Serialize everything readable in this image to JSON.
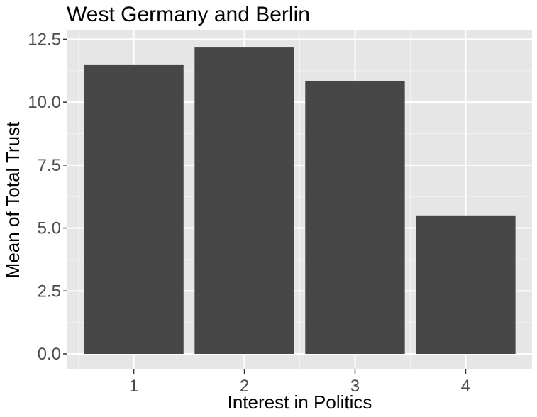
{
  "chart_data": {
    "type": "bar",
    "title": "West Germany and Berlin",
    "xlabel": "Interest in Politics",
    "ylabel": "Mean of Total Trust",
    "categories": [
      "1",
      "2",
      "3",
      "4"
    ],
    "values": [
      11.5,
      12.2,
      10.85,
      5.5
    ],
    "ylim": [
      -0.62,
      12.85
    ],
    "yticks": [
      0.0,
      2.5,
      5.0,
      7.5,
      10.0,
      12.5
    ],
    "ytick_labels": [
      "0.0",
      "2.5",
      "5.0",
      "7.5",
      "10.0",
      "12.5"
    ],
    "grid": true,
    "legend": "none",
    "colors": {
      "bar": "#474747",
      "panel_background": "#e6e6e6",
      "grid_major": "#ffffff",
      "grid_minor": "#f2f2f2",
      "tick_text": "#4d4d4d",
      "tick_mark": "#333333"
    }
  }
}
